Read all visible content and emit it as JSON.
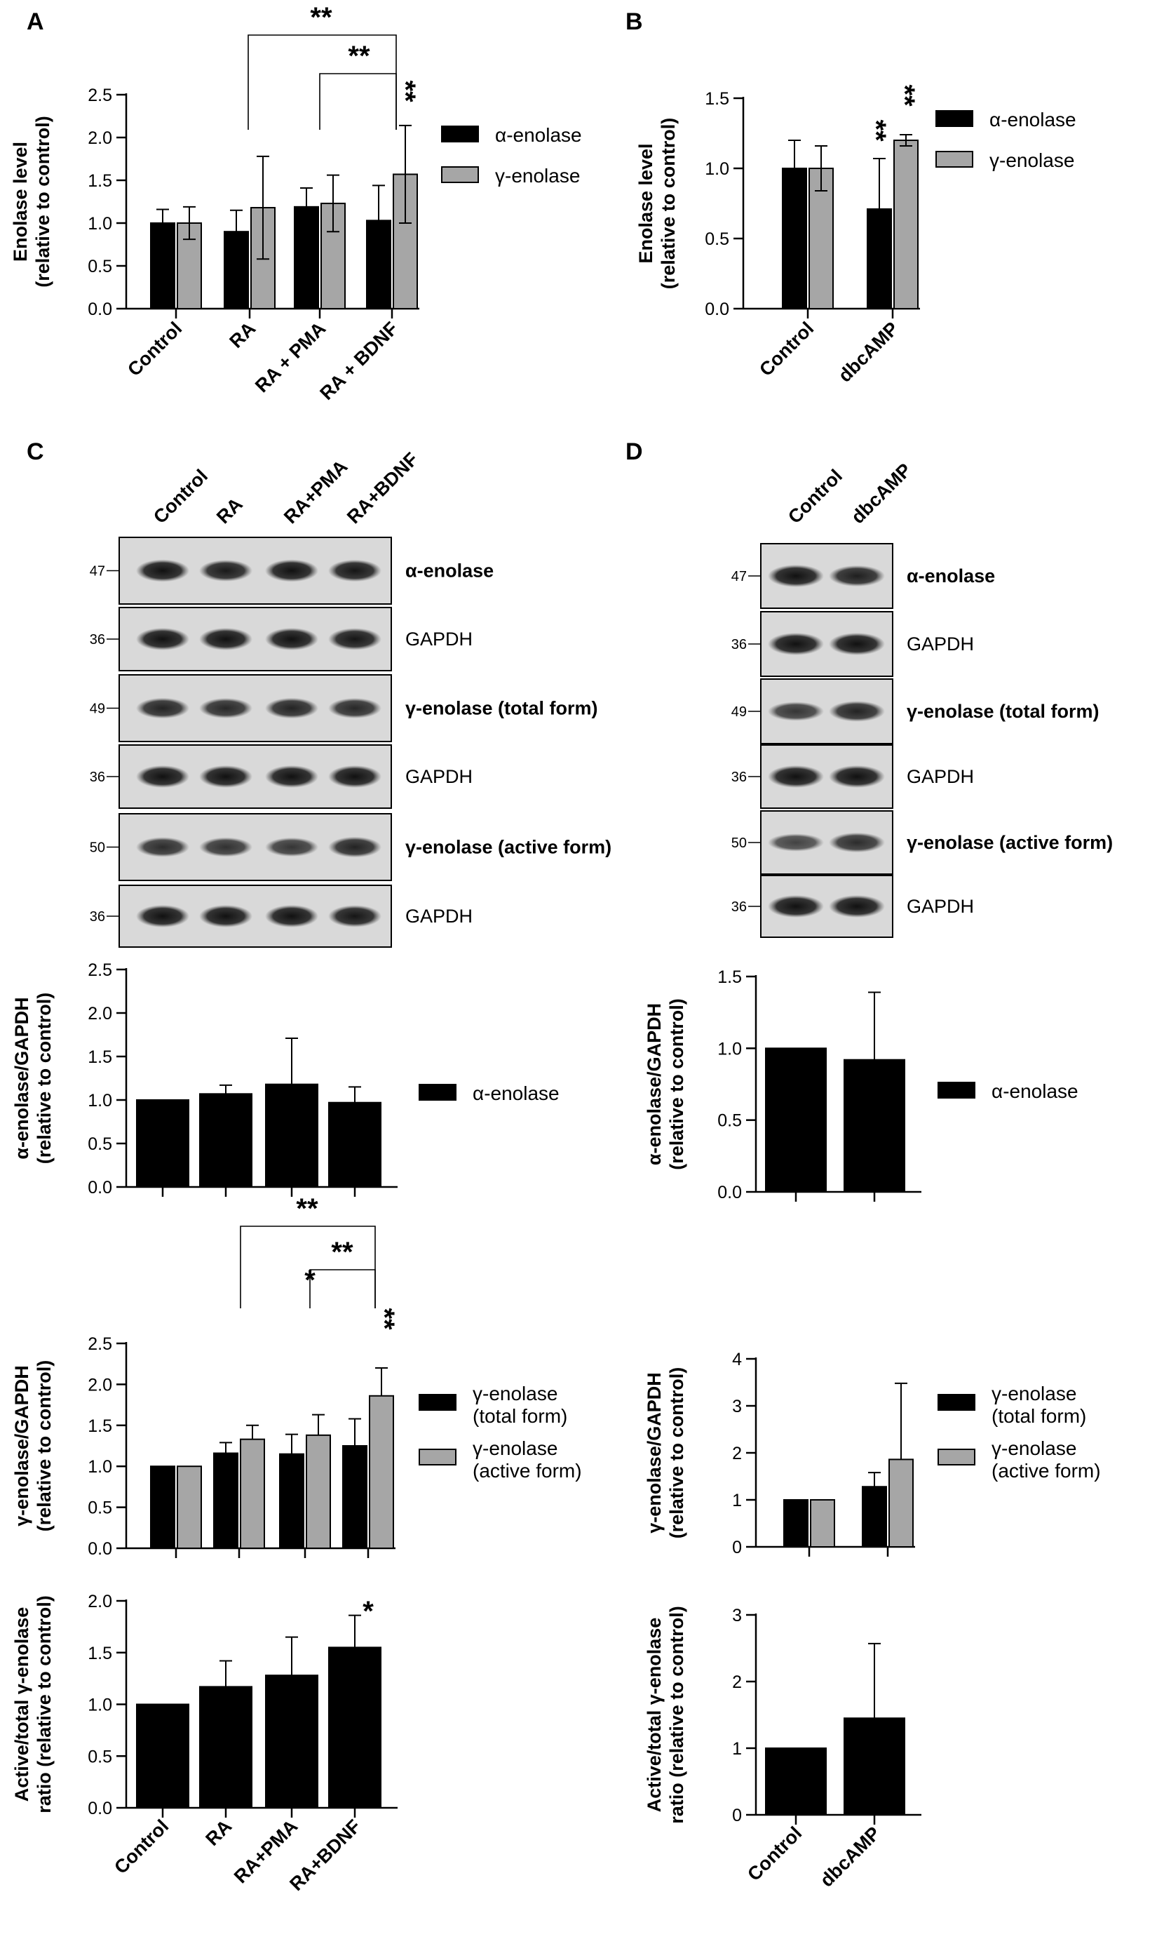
{
  "panel_labels": {
    "a": "A",
    "b": "B",
    "c": "C",
    "d": "D"
  },
  "colors": {
    "alpha": "#000000",
    "gamma": "#a6a6a6"
  },
  "chart_data": [
    {
      "panel": "A",
      "type": "bar",
      "ylabel": [
        "Enolase level",
        "(relative to control)"
      ],
      "categories": [
        "Control",
        "RA",
        "RA + PMA",
        "RA + BDNF"
      ],
      "yticks": [
        "0.0",
        "0.5",
        "1.0",
        "1.5",
        "2.0",
        "2.5"
      ],
      "ylim": [
        0,
        2.5
      ],
      "series": [
        {
          "name": "α-enolase",
          "values": [
            1.0,
            0.9,
            1.19,
            1.03
          ],
          "errors": [
            0.16,
            0.25,
            0.22,
            0.41
          ]
        },
        {
          "name": "γ-enolase",
          "values": [
            1.0,
            1.18,
            1.23,
            1.57
          ],
          "errors": [
            0.19,
            0.6,
            0.33,
            0.57
          ]
        }
      ],
      "annotations": [
        "**",
        "**",
        "**"
      ]
    },
    {
      "panel": "B",
      "type": "bar",
      "ylabel": [
        "Enolase level",
        "(relative to control)"
      ],
      "categories": [
        "Control",
        "dbcAMP"
      ],
      "yticks": [
        "0.0",
        "0.5",
        "1.0",
        "1.5"
      ],
      "ylim": [
        0,
        1.5
      ],
      "series": [
        {
          "name": "α-enolase",
          "values": [
            1.0,
            0.71
          ],
          "errors": [
            0.2,
            0.36
          ]
        },
        {
          "name": "γ-enolase",
          "values": [
            1.0,
            1.2
          ],
          "errors": [
            0.16,
            0.04
          ]
        }
      ],
      "annotations": [
        "**",
        "**"
      ]
    },
    {
      "panel": "C",
      "type": "bar",
      "ylabel": [
        "α-enolase/GAPDH",
        "(relative to control)"
      ],
      "categories": [
        "Control",
        "RA",
        "RA+PMA",
        "RA+BDNF"
      ],
      "yticks": [
        "0.0",
        "0.5",
        "1.0",
        "1.5",
        "2.0",
        "2.5"
      ],
      "ylim": [
        0,
        2.5
      ],
      "series": [
        {
          "name": "α-enolase",
          "values": [
            1.0,
            1.07,
            1.18,
            0.97
          ],
          "errors": [
            0,
            0.1,
            0.53,
            0.18
          ]
        }
      ]
    },
    {
      "panel": "C",
      "type": "bar",
      "ylabel": [
        "γ-enolase/GAPDH",
        "(relative to control)"
      ],
      "categories": [
        "Control",
        "RA",
        "RA+PMA",
        "RA+BDNF"
      ],
      "yticks": [
        "0.0",
        "0.5",
        "1.0",
        "1.5",
        "2.0",
        "2.5"
      ],
      "ylim": [
        0,
        2.5
      ],
      "series": [
        {
          "name": "γ-enolase (total form)",
          "legend": [
            "γ-enolase",
            "(total form)"
          ],
          "values": [
            1.0,
            1.16,
            1.15,
            1.25
          ],
          "errors": [
            0,
            0.13,
            0.24,
            0.33
          ]
        },
        {
          "name": "γ-enolase (active form)",
          "legend": [
            "γ-enolase",
            "(active form)"
          ],
          "values": [
            1.0,
            1.33,
            1.38,
            1.86
          ],
          "errors": [
            0,
            0.17,
            0.25,
            0.34
          ]
        }
      ],
      "annotations": [
        "**",
        "**",
        "*",
        "**"
      ]
    },
    {
      "panel": "C",
      "type": "bar",
      "ylabel": [
        "Active/total γ-enolase",
        "ratio (relative to control)"
      ],
      "categories": [
        "Control",
        "RA",
        "RA+PMA",
        "RA+BDNF"
      ],
      "yticks": [
        "0.0",
        "0.5",
        "1.0",
        "1.5",
        "2.0"
      ],
      "ylim": [
        0,
        2.0
      ],
      "series": [
        {
          "name": "",
          "values": [
            1.0,
            1.17,
            1.28,
            1.55
          ],
          "errors": [
            0,
            0.25,
            0.37,
            0.31
          ]
        }
      ],
      "annotations": [
        "*"
      ]
    },
    {
      "panel": "D",
      "type": "bar",
      "ylabel": [
        "α-enolase/GAPDH",
        "(relative to control)"
      ],
      "categories": [
        "Control",
        "dbcAMP"
      ],
      "yticks": [
        "0.0",
        "0.5",
        "1.0",
        "1.5"
      ],
      "ylim": [
        0,
        1.5
      ],
      "series": [
        {
          "name": "α-enolase",
          "values": [
            1.0,
            0.92
          ],
          "errors": [
            0,
            0.47
          ]
        }
      ]
    },
    {
      "panel": "D",
      "type": "bar",
      "ylabel": [
        "γ-enolase/GAPDH",
        "(relative to control)"
      ],
      "categories": [
        "Control",
        "dbcAMP"
      ],
      "yticks": [
        "0",
        "1",
        "2",
        "3",
        "4"
      ],
      "ylim": [
        0,
        4
      ],
      "series": [
        {
          "name": "γ-enolase (total form)",
          "legend": [
            "γ-enolase",
            "(total form)"
          ],
          "values": [
            1.0,
            1.28
          ],
          "errors": [
            0,
            0.3
          ]
        },
        {
          "name": "γ-enolase (active form)",
          "legend": [
            "γ-enolase",
            "(active form)"
          ],
          "values": [
            1.0,
            1.86
          ],
          "errors": [
            0,
            1.62
          ]
        }
      ]
    },
    {
      "panel": "D",
      "type": "bar",
      "ylabel": [
        "Active/total γ-enolase",
        "ratio (relative to control)"
      ],
      "categories": [
        "Control",
        "dbcAMP"
      ],
      "yticks": [
        "0",
        "1",
        "2",
        "3"
      ],
      "ylim": [
        0,
        3
      ],
      "series": [
        {
          "name": "",
          "values": [
            1.0,
            1.45
          ],
          "errors": [
            0,
            1.12
          ]
        }
      ]
    }
  ],
  "blots": {
    "c": {
      "lanes": [
        "Control",
        "RA",
        "RA+PMA",
        "RA+BDNF"
      ],
      "rows": [
        {
          "mw": "47",
          "label": "α-enolase"
        },
        {
          "mw": "36",
          "label": "GAPDH"
        },
        {
          "mw": "49",
          "label": "γ-enolase (total form)"
        },
        {
          "mw": "36",
          "label": "GAPDH"
        },
        {
          "mw": "50",
          "label": "γ-enolase (active form)"
        },
        {
          "mw": "36",
          "label": "GAPDH"
        }
      ]
    },
    "d": {
      "lanes": [
        "Control",
        "dbcAMP"
      ],
      "rows": [
        {
          "mw": "47",
          "label": "α-enolase"
        },
        {
          "mw": "36",
          "label": "GAPDH"
        },
        {
          "mw": "49",
          "label": "γ-enolase (total form)"
        },
        {
          "mw": "36",
          "label": "GAPDH"
        },
        {
          "mw": "50",
          "label": "γ-enolase (active form)"
        },
        {
          "mw": "36",
          "label": "GAPDH"
        }
      ]
    }
  }
}
